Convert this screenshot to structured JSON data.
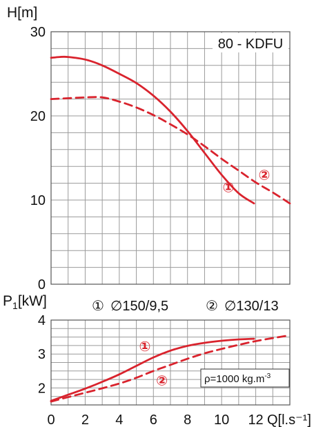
{
  "chart_data": [
    {
      "type": "line",
      "title": "80 - KDFU",
      "ylabel": "H[m]",
      "xlim": [
        0,
        14
      ],
      "ylim": [
        0,
        30
      ],
      "x_step": 1,
      "y_step": 2,
      "y_ticks": [
        "0",
        "10",
        "20",
        "30"
      ],
      "series": [
        {
          "name": "①",
          "style": "solid",
          "x": [
            0,
            0.5,
            1,
            2,
            3,
            4,
            5,
            6,
            7,
            8,
            9,
            10,
            11,
            11.9
          ],
          "y": [
            26.9,
            27.0,
            27.0,
            26.7,
            26.0,
            25.0,
            23.9,
            22.4,
            20.5,
            18.2,
            15.6,
            13.0,
            10.8,
            9.6
          ]
        },
        {
          "name": "②",
          "style": "dashed",
          "x": [
            0,
            1,
            2,
            3,
            4,
            5,
            6,
            7,
            8,
            9,
            10,
            11,
            12,
            13,
            14
          ],
          "y": [
            22.0,
            22.1,
            22.2,
            22.2,
            21.7,
            21.0,
            20.1,
            19.0,
            17.8,
            16.4,
            14.9,
            13.5,
            12.1,
            10.9,
            9.6
          ]
        }
      ],
      "labels": [
        {
          "series": 0,
          "text": "①",
          "x": 10.4,
          "y": 11.5
        },
        {
          "series": 1,
          "text": "②",
          "x": 12.5,
          "y": 13.0
        }
      ],
      "grid": true,
      "legend": [
        {
          "symbol": "①",
          "text": "∅150/9,5"
        },
        {
          "symbol": "②",
          "text": "∅130/13"
        }
      ]
    },
    {
      "type": "line",
      "ylabel": "P",
      "ylabel_sub": "1",
      "ylabel_unit": "[kW]",
      "xlabel": "Q[l.s⁻¹]",
      "xlim": [
        0,
        14
      ],
      "ylim": [
        1.5,
        4
      ],
      "x_step": 1,
      "y_step": 0.25,
      "x_ticks": [
        "0",
        "2",
        "4",
        "6",
        "8",
        "10",
        "12"
      ],
      "y_ticks": [
        "2",
        "3",
        "4"
      ],
      "series": [
        {
          "name": "①",
          "style": "solid",
          "x": [
            0,
            1,
            2,
            3,
            4,
            5,
            6,
            7,
            8,
            9,
            10,
            11,
            11.9
          ],
          "y": [
            1.62,
            1.8,
            1.98,
            2.18,
            2.4,
            2.65,
            2.9,
            3.1,
            3.24,
            3.33,
            3.39,
            3.43,
            3.45
          ]
        },
        {
          "name": "②",
          "style": "dashed",
          "x": [
            0,
            1,
            2,
            3,
            4,
            5,
            6,
            7,
            8,
            9,
            10,
            11,
            12,
            13,
            14
          ],
          "y": [
            1.6,
            1.73,
            1.86,
            1.99,
            2.13,
            2.3,
            2.5,
            2.68,
            2.86,
            3.02,
            3.15,
            3.27,
            3.38,
            3.47,
            3.55
          ]
        }
      ],
      "labels": [
        {
          "series": 0,
          "text": "①",
          "x": 5.5,
          "y": 3.23
        },
        {
          "series": 1,
          "text": "②",
          "x": 6.5,
          "y": 2.22
        }
      ],
      "annotation": "ρ=1000 kg.m",
      "annotation_sup": "-3",
      "grid": true
    }
  ],
  "colors": {
    "curve": "#d9232d",
    "grid": "#9a9a9a",
    "text": "#111111"
  }
}
